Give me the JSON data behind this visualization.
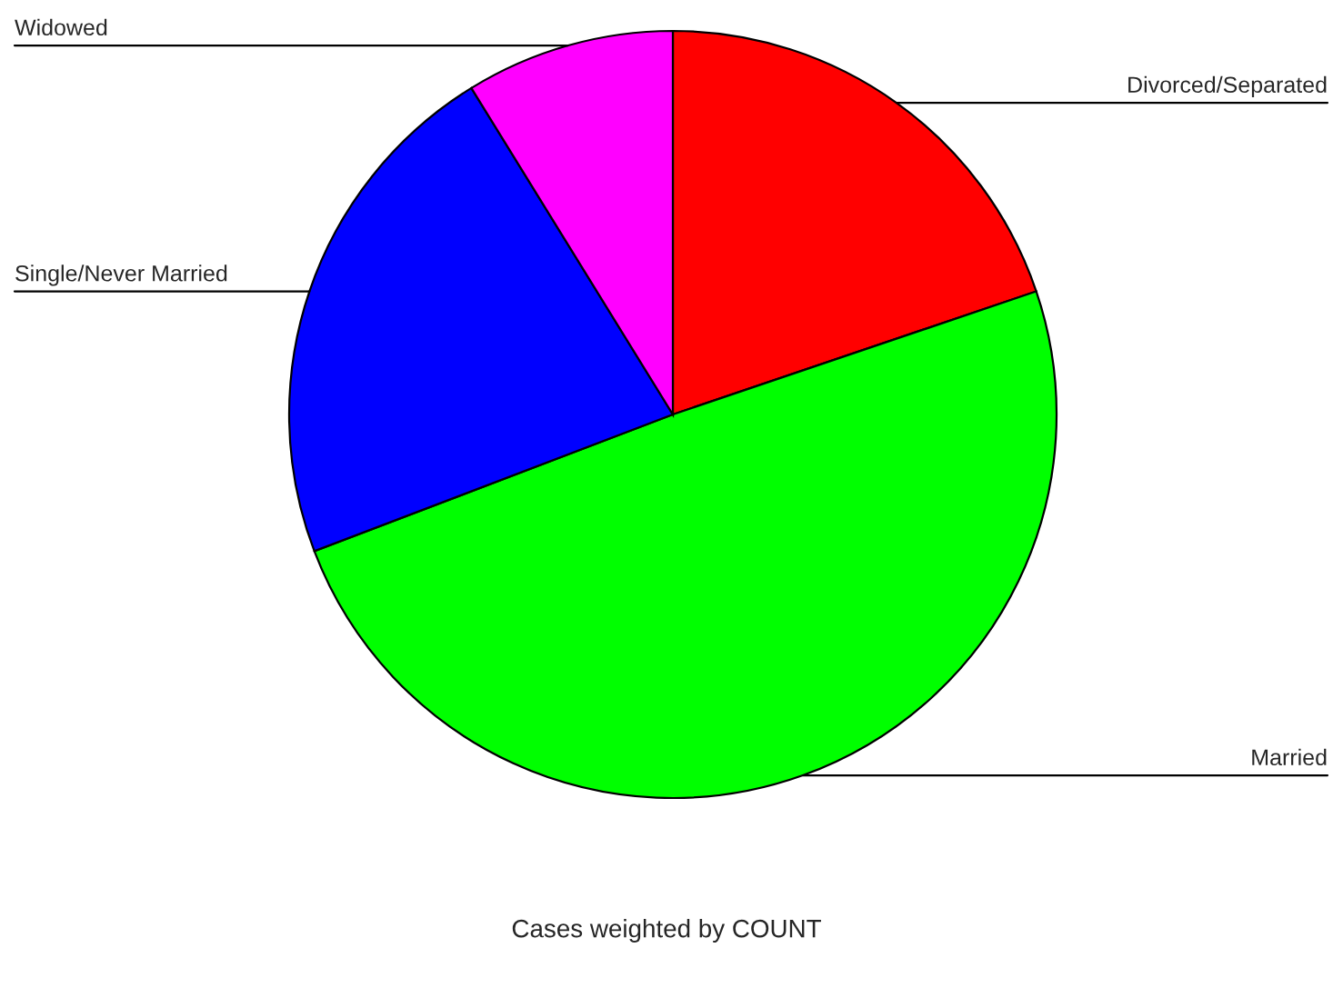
{
  "chart_data": {
    "type": "pie",
    "categories": [
      "Divorced/Separated",
      "Married",
      "Single/Never Married",
      "Widowed"
    ],
    "values": [
      19.8,
      49.4,
      22.0,
      8.8
    ],
    "colors": [
      "#ff0000",
      "#00ff00",
      "#0000ff",
      "#ff00ff"
    ],
    "annotations": [
      "Cases weighted by COUNT"
    ]
  }
}
